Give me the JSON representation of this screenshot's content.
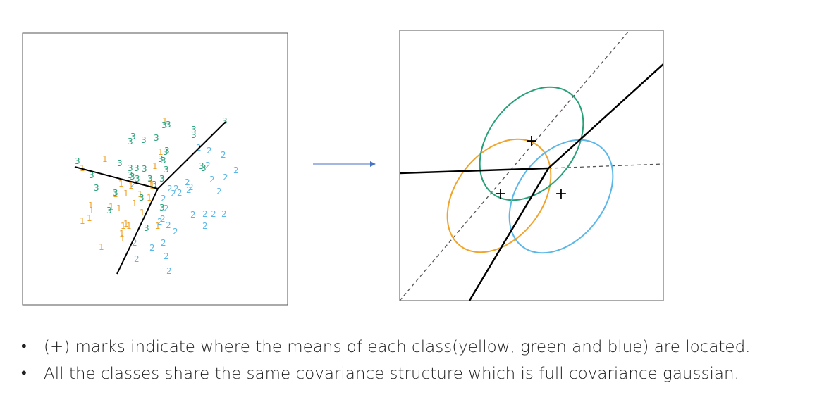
{
  "colors": {
    "class1": "#f0a52a",
    "class2": "#5bb7e8",
    "class3": "#27a07a",
    "boundary": "#000000",
    "dashed": "#555555",
    "arrow": "#4472c4"
  },
  "left_panel": {
    "class_labels": {
      "class1": "1",
      "class2": "2",
      "class3": "3"
    }
  },
  "right_panel": {
    "mean_marker": "+"
  },
  "bullets": [
    "(+) marks indicate where the means of each class(yellow, green and blue) are located.",
    "All the classes share the same covariance structure which is full covariance gaussian."
  ],
  "bullet_symbol": "•"
}
